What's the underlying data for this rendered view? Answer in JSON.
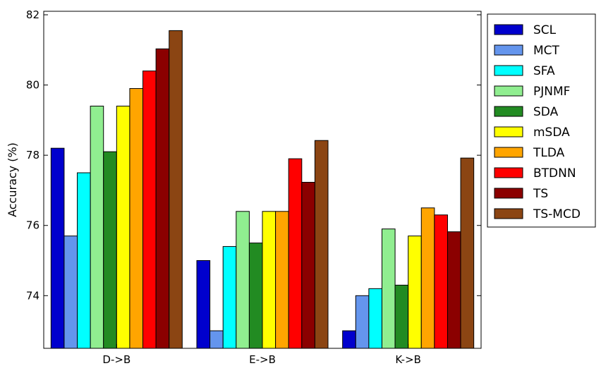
{
  "chart_data": {
    "type": "bar",
    "title": "",
    "xlabel": "",
    "ylabel": "Accuracy (%)",
    "categories": [
      "D->B",
      "E->B",
      "K->B"
    ],
    "ylim": [
      72.5,
      82.1
    ],
    "yticks": [
      74,
      76,
      78,
      80,
      82
    ],
    "grid": false,
    "legend_position": "outside-right",
    "series": [
      {
        "name": "SCL",
        "color": "#0000cd",
        "values": [
          78.2,
          75.0,
          73.0
        ]
      },
      {
        "name": "MCT",
        "color": "#6495ed",
        "values": [
          75.7,
          73.0,
          74.0
        ]
      },
      {
        "name": "SFA",
        "color": "#00ffff",
        "values": [
          77.5,
          75.4,
          74.2
        ]
      },
      {
        "name": "PJNMF",
        "color": "#90ee90",
        "values": [
          79.4,
          76.4,
          75.9
        ]
      },
      {
        "name": "SDA",
        "color": "#228b22",
        "values": [
          78.1,
          75.5,
          74.3
        ]
      },
      {
        "name": "mSDA",
        "color": "#ffff00",
        "values": [
          79.4,
          76.4,
          75.7
        ]
      },
      {
        "name": "TLDA",
        "color": "#ffa500",
        "values": [
          79.9,
          76.4,
          76.5
        ]
      },
      {
        "name": "BTDNN",
        "color": "#ff0000",
        "values": [
          80.4,
          77.9,
          76.3
        ]
      },
      {
        "name": "TS",
        "color": "#8b0000",
        "values": [
          81.03,
          77.23,
          75.82
        ]
      },
      {
        "name": "TS-MCD",
        "color": "#8b4513",
        "values": [
          81.55,
          78.42,
          77.92
        ]
      }
    ]
  }
}
